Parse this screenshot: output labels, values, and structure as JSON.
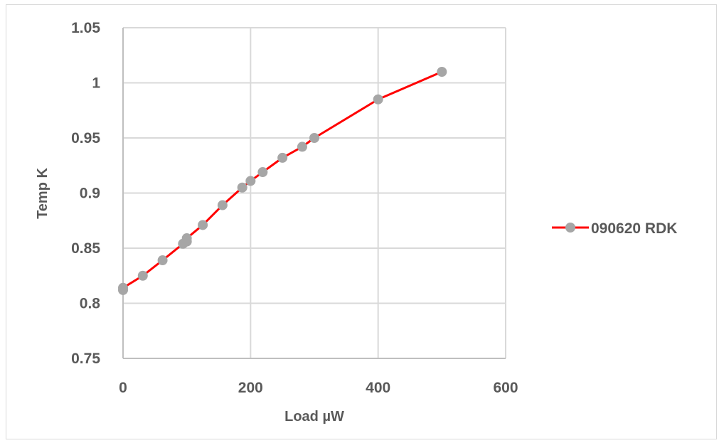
{
  "chart_data": {
    "type": "line",
    "xlabel": "Load µW",
    "ylabel": "Temp K",
    "xlim": [
      0,
      600
    ],
    "ylim": [
      0.75,
      1.05
    ],
    "x_ticks": [
      "0",
      "200",
      "400",
      "600"
    ],
    "y_ticks": [
      "0.75",
      "0.8",
      "0.85",
      "0.9",
      "0.95",
      "1",
      "1.05"
    ],
    "grid": true,
    "legend_position": "right",
    "series": [
      {
        "name": "090620 RDK",
        "line_color": "#ff0000",
        "marker_color": "#a6a6a6",
        "x": [
          0,
          0,
          31,
          62,
          94,
          100,
          100,
          125,
          156,
          187,
          200,
          219,
          250,
          281,
          300,
          400,
          500
        ],
        "y": [
          0.812,
          0.814,
          0.825,
          0.839,
          0.854,
          0.856,
          0.859,
          0.871,
          0.889,
          0.905,
          0.911,
          0.919,
          0.932,
          0.942,
          0.95,
          0.985,
          1.01
        ]
      }
    ]
  }
}
